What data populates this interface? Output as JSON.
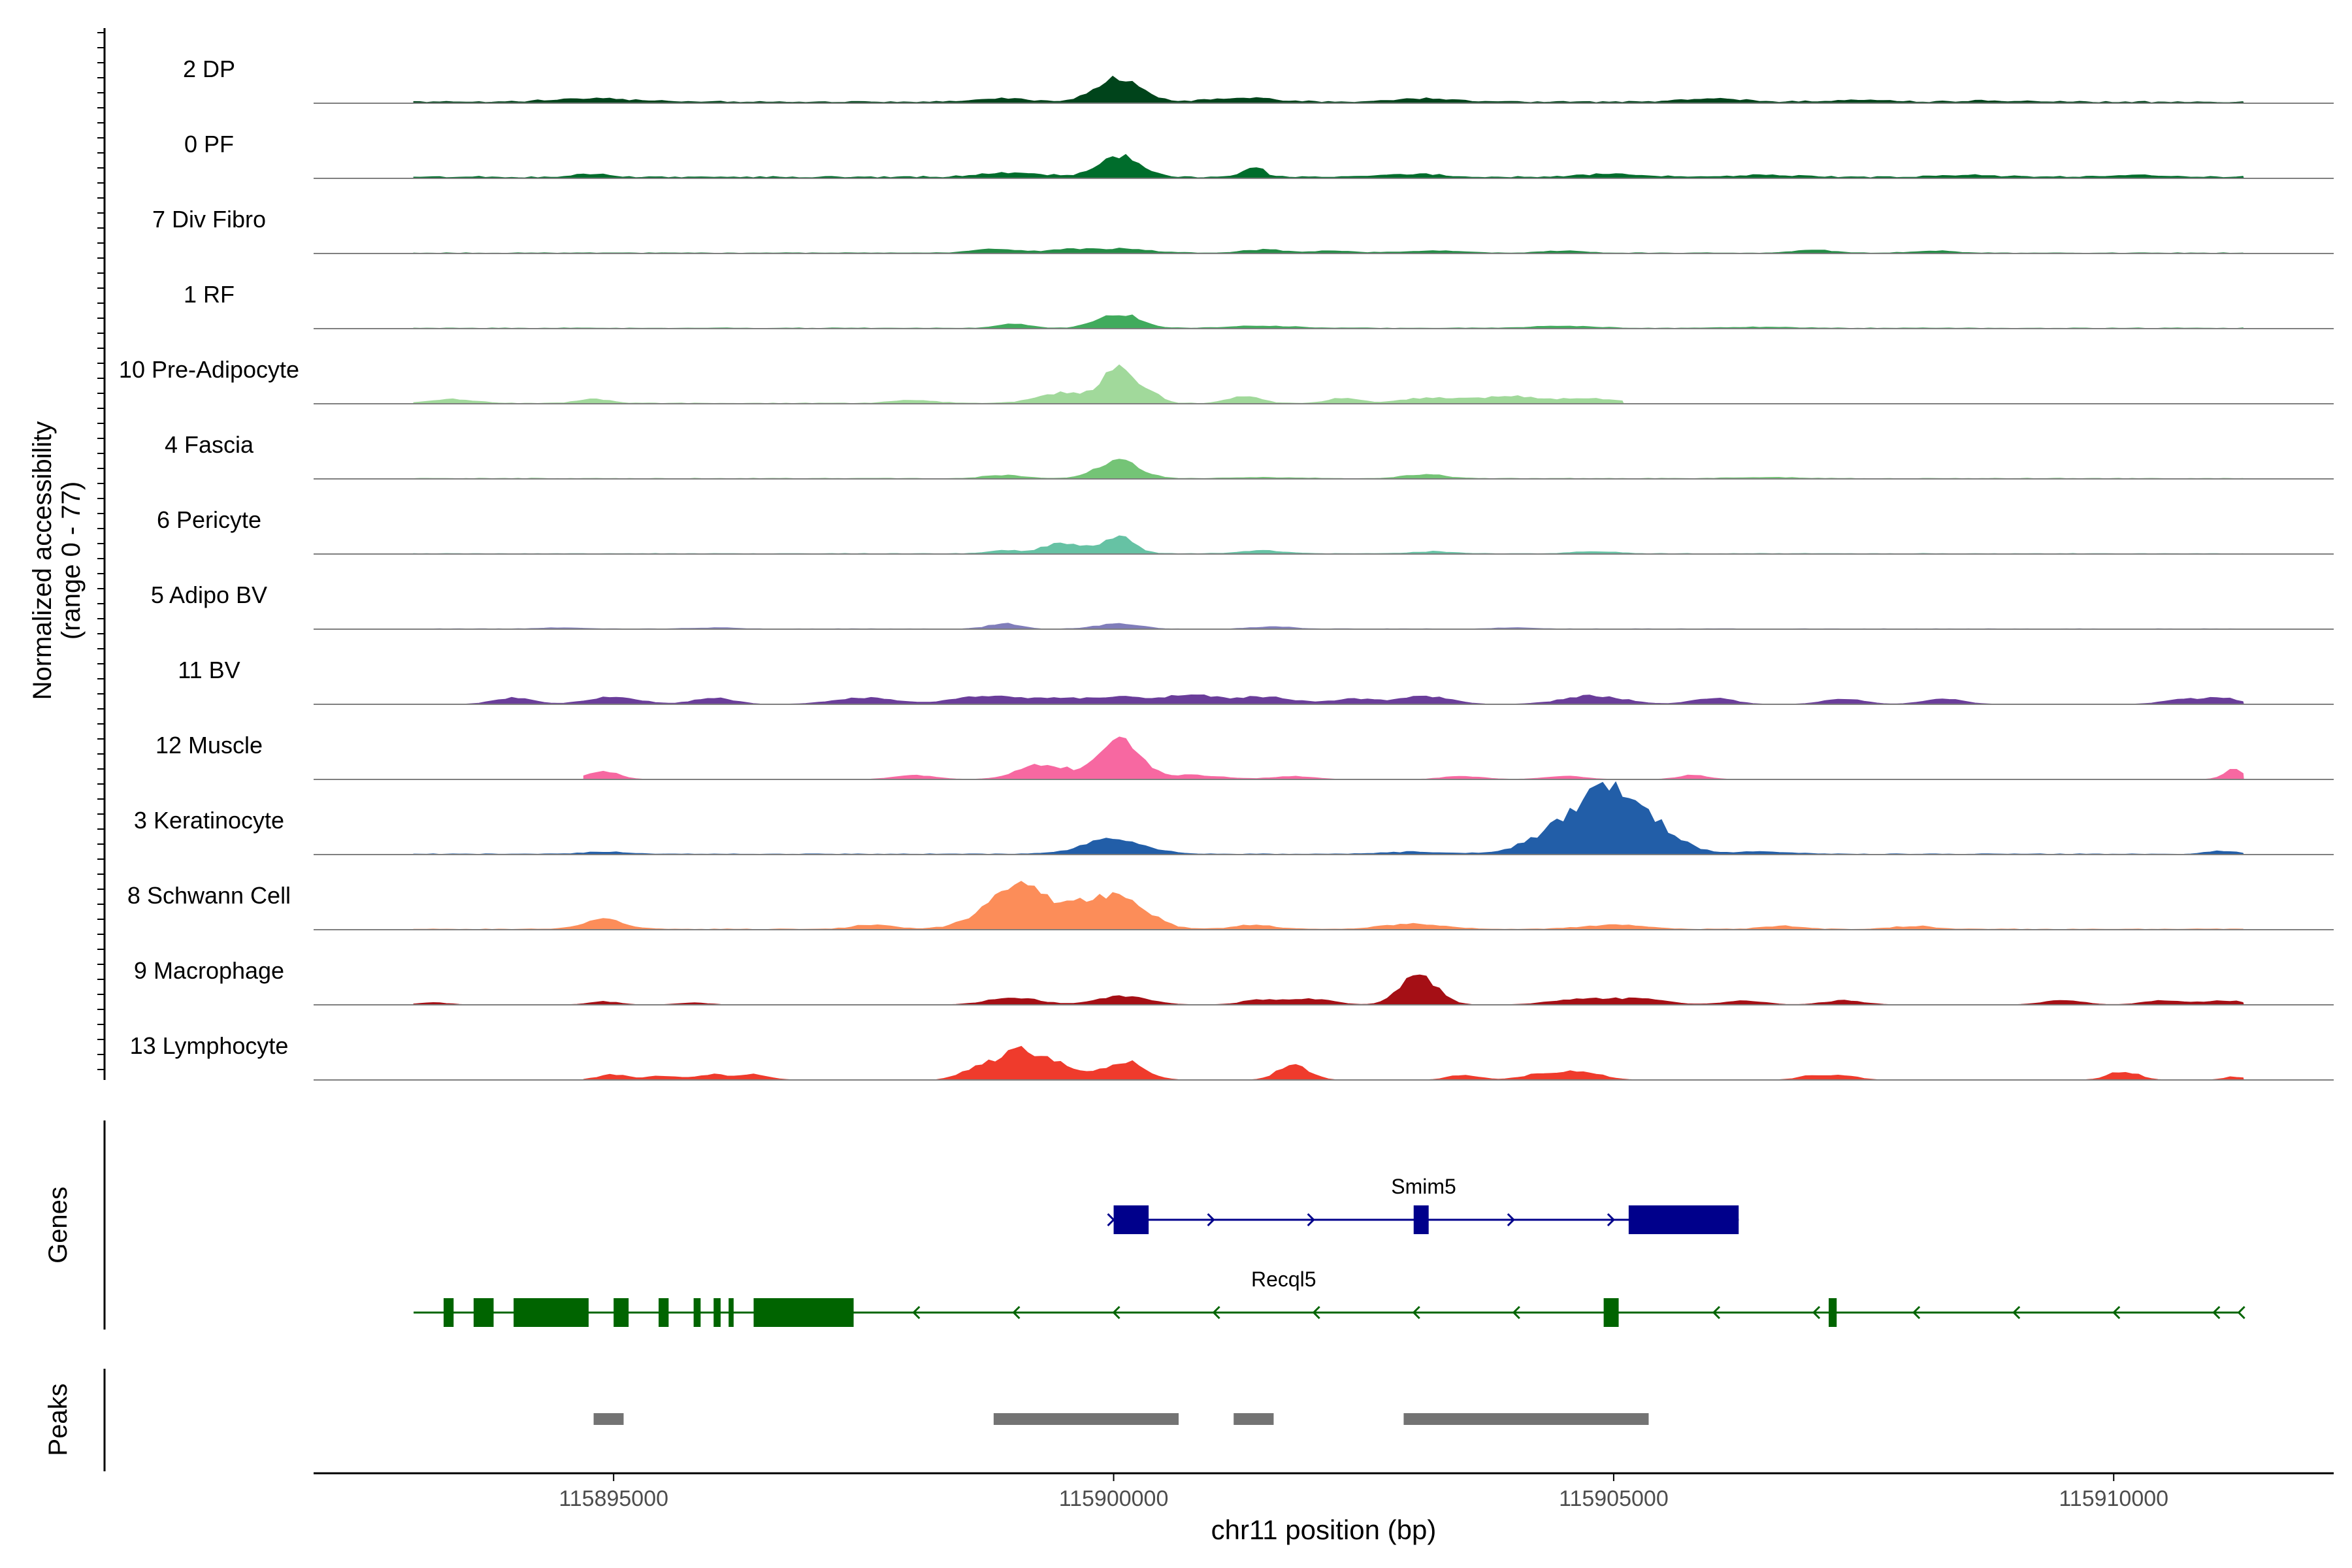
{
  "chart_data": {
    "type": "area",
    "chromosome": "chr11",
    "xlim": [
      115892000,
      115912200
    ],
    "xlabel": "chr11 position (bp)",
    "x_ticks": [
      115895000,
      115900000,
      115905000,
      115910000
    ],
    "x_tick_labels": [
      "115895000",
      "115900000",
      "115905000",
      "115910000"
    ],
    "ylabel": [
      "Normalized accessibility",
      "(range 0 - 77)"
    ],
    "ylim": [
      0,
      77
    ],
    "tracks": [
      {
        "name": "2 DP",
        "color": "#00441b",
        "peaks": [
          [
            115900050,
            24,
            220
          ],
          [
            115894800,
            3,
            400
          ],
          [
            115898900,
            3,
            300
          ],
          [
            115901300,
            4,
            300
          ],
          [
            115903100,
            3,
            300
          ],
          [
            115906000,
            3,
            300
          ],
          [
            115907500,
            2,
            300
          ],
          [
            115908800,
            1,
            300
          ]
        ],
        "baseline": 1.2,
        "extent": [
          115893000,
          115911300
        ]
      },
      {
        "name": "0 PF",
        "color": "#006d2c",
        "peaks": [
          [
            115900050,
            21,
            200
          ],
          [
            115901400,
            10,
            100
          ],
          [
            115894800,
            3,
            150
          ],
          [
            115899000,
            4,
            300
          ],
          [
            115903000,
            3,
            300
          ],
          [
            115905000,
            3,
            300
          ],
          [
            115906500,
            2,
            300
          ],
          [
            115908500,
            2,
            300
          ],
          [
            115910200,
            2,
            300
          ]
        ],
        "baseline": 1.2,
        "extent": [
          115893000,
          115911300
        ]
      },
      {
        "name": "7 Div Fibro",
        "color": "#238b45",
        "peaks": [
          [
            115900050,
            4,
            300
          ],
          [
            115898800,
            4,
            200
          ],
          [
            115899500,
            3,
            200
          ],
          [
            115901500,
            3,
            200
          ],
          [
            115902200,
            2,
            200
          ],
          [
            115903200,
            2,
            300
          ],
          [
            115904500,
            2,
            200
          ],
          [
            115907000,
            3,
            200
          ],
          [
            115908200,
            2,
            200
          ]
        ],
        "baseline": 0.5,
        "extent": [
          115893000,
          115911300
        ]
      },
      {
        "name": "1 RF",
        "color": "#41ab5d",
        "peaks": [
          [
            115900050,
            14,
            200
          ],
          [
            115899000,
            4,
            150
          ],
          [
            115901500,
            2,
            300
          ],
          [
            115904500,
            2,
            300
          ],
          [
            115906500,
            1,
            300
          ]
        ],
        "baseline": 0.5,
        "extent": [
          115893000,
          115911300
        ]
      },
      {
        "name": "10 Pre-Adipocyte",
        "color": "#a1d99b",
        "peaks": [
          [
            115900050,
            37,
            150
          ],
          [
            115899500,
            10,
            250
          ],
          [
            115900400,
            8,
            100
          ],
          [
            115901300,
            7,
            150
          ],
          [
            115902300,
            5,
            150
          ],
          [
            115903200,
            5,
            300
          ],
          [
            115904000,
            6,
            300
          ],
          [
            115893400,
            4,
            200
          ],
          [
            115894800,
            4,
            150
          ],
          [
            115898000,
            3,
            200
          ],
          [
            115904800,
            4,
            300
          ],
          [
            115907700,
            2,
            150
          ]
        ],
        "baseline": 0.5,
        "extent": [
          115893000,
          115905100
        ]
      },
      {
        "name": "4 Fascia",
        "color": "#74c476",
        "peaks": [
          [
            115900050,
            18,
            200
          ],
          [
            115898900,
            3,
            200
          ],
          [
            115903100,
            4,
            200
          ],
          [
            115901500,
            1,
            300
          ],
          [
            115906500,
            1,
            300
          ]
        ],
        "baseline": 0.4,
        "extent": [
          115893000,
          115911300
        ]
      },
      {
        "name": "6 Pericyte",
        "color": "#66c2a4",
        "peaks": [
          [
            115900050,
            17,
            150
          ],
          [
            115899500,
            10,
            200
          ],
          [
            115898900,
            3,
            150
          ],
          [
            115901500,
            3,
            200
          ],
          [
            115903200,
            2,
            200
          ],
          [
            115904800,
            2,
            200
          ]
        ],
        "baseline": 0.4,
        "extent": [
          115893000,
          115911300
        ]
      },
      {
        "name": "5 Adipo BV",
        "color": "#807dba",
        "peaks": [
          [
            115900050,
            5,
            200
          ],
          [
            115898900,
            5,
            150
          ],
          [
            115901600,
            2,
            200
          ],
          [
            115896000,
            1,
            200
          ],
          [
            115894500,
            1,
            200
          ],
          [
            115904000,
            1,
            200
          ]
        ],
        "baseline": 0.3,
        "extent": [
          115893000,
          115911300
        ]
      },
      {
        "name": "11 BV",
        "color": "#6a3d9a",
        "peaks": [
          [
            115894000,
            6,
            200
          ],
          [
            115895000,
            7,
            250
          ],
          [
            115896000,
            6,
            200
          ],
          [
            115897500,
            6,
            300
          ],
          [
            115898700,
            8,
            300
          ],
          [
            115899500,
            6,
            300
          ],
          [
            115900100,
            7,
            200
          ],
          [
            115900750,
            9,
            250
          ],
          [
            115901500,
            7,
            300
          ],
          [
            115902400,
            5,
            200
          ],
          [
            115903100,
            8,
            250
          ],
          [
            115904800,
            8,
            300
          ],
          [
            115906000,
            6,
            200
          ],
          [
            115907300,
            5,
            200
          ],
          [
            115908300,
            5,
            200
          ],
          [
            115910700,
            5,
            200
          ],
          [
            115911100,
            6,
            150
          ]
        ],
        "baseline": 0,
        "extent": [
          115893000,
          115911300
        ]
      },
      {
        "name": "12 Muscle",
        "color": "#f768a1",
        "peaks": [
          [
            115900050,
            40,
            200
          ],
          [
            115899300,
            14,
            250
          ],
          [
            115894900,
            8,
            150
          ],
          [
            115898000,
            4,
            200
          ],
          [
            115900800,
            4,
            300
          ],
          [
            115901800,
            3,
            200
          ],
          [
            115903500,
            3,
            200
          ],
          [
            115904500,
            3,
            200
          ],
          [
            115905800,
            4,
            150
          ],
          [
            115911200,
            10,
            100
          ]
        ],
        "baseline": 0,
        "extent": [
          115894700,
          115911300
        ]
      },
      {
        "name": "3 Keratinocyte",
        "color": "#225ea8",
        "peaks": [
          [
            115904950,
            62,
            380
          ],
          [
            115900000,
            14,
            300
          ],
          [
            115904300,
            7,
            300
          ],
          [
            115905500,
            5,
            250
          ],
          [
            115894900,
            2,
            200
          ],
          [
            115903000,
            2,
            300
          ],
          [
            115906500,
            2,
            300
          ],
          [
            115911100,
            3,
            150
          ]
        ],
        "baseline": 0.5,
        "extent": [
          115893000,
          115911300
        ]
      },
      {
        "name": "8 Schwann Cell",
        "color": "#fc8d59",
        "peaks": [
          [
            115899050,
            40,
            320
          ],
          [
            115900100,
            28,
            250
          ],
          [
            115899700,
            15,
            200
          ],
          [
            115894900,
            9,
            200
          ],
          [
            115903000,
            5,
            300
          ],
          [
            115905000,
            4,
            300
          ],
          [
            115897600,
            4,
            200
          ],
          [
            115908000,
            3,
            200
          ],
          [
            115906700,
            3,
            200
          ],
          [
            115901400,
            4,
            200
          ]
        ],
        "baseline": 0.5,
        "extent": [
          115893000,
          115911300
        ]
      },
      {
        "name": "9 Macrophage",
        "color": "#a50f15",
        "peaks": [
          [
            115903050,
            28,
            180
          ],
          [
            115900100,
            8,
            250
          ],
          [
            115899000,
            7,
            250
          ],
          [
            115901500,
            5,
            200
          ],
          [
            115902000,
            5,
            200
          ],
          [
            115904700,
            6,
            300
          ],
          [
            115905300,
            5,
            250
          ],
          [
            115906300,
            4,
            200
          ],
          [
            115907300,
            4,
            200
          ],
          [
            115909500,
            4,
            200
          ],
          [
            115910500,
            4,
            200
          ],
          [
            115911100,
            4,
            200
          ],
          [
            115894900,
            3,
            150
          ],
          [
            115893200,
            2,
            150
          ],
          [
            115895800,
            2,
            150
          ]
        ],
        "baseline": 0,
        "extent": [
          115893000,
          115911300
        ]
      },
      {
        "name": "13 Lymphocyte",
        "color": "#ef3b2c",
        "peaks": [
          [
            115899000,
            28,
            180
          ],
          [
            115899400,
            16,
            200
          ],
          [
            115900100,
            18,
            200
          ],
          [
            115901800,
            15,
            150
          ],
          [
            115898600,
            10,
            150
          ],
          [
            115895000,
            5,
            150
          ],
          [
            115895500,
            4,
            150
          ],
          [
            115896000,
            5,
            150
          ],
          [
            115896400,
            5,
            150
          ],
          [
            115903500,
            5,
            150
          ],
          [
            115904300,
            6,
            200
          ],
          [
            115904700,
            7,
            200
          ],
          [
            115907000,
            4,
            150
          ],
          [
            115907300,
            4,
            150
          ],
          [
            115910100,
            8,
            150
          ],
          [
            115911200,
            3,
            100
          ]
        ],
        "baseline": 0,
        "extent": [
          115894700,
          115911300
        ]
      }
    ],
    "genes": [
      {
        "name": "Smim5",
        "strand": "+",
        "color": "#00008b",
        "start": 115900000,
        "end": 115906250,
        "exons": [
          [
            115900000,
            115900350
          ],
          [
            115903000,
            115903150
          ],
          [
            115905150,
            115906250
          ]
        ],
        "arrows": [
          115901000,
          115902000,
          115904000,
          115905000
        ]
      },
      {
        "name": "Recql5",
        "strand": "-",
        "color": "#006400",
        "start": 115893000,
        "end": 115911250,
        "exons": [
          [
            115893300,
            115893400
          ],
          [
            115893600,
            115893800
          ],
          [
            115894000,
            115894750
          ],
          [
            115895000,
            115895150
          ],
          [
            115895450,
            115895550
          ],
          [
            115895800,
            115895870
          ],
          [
            115896000,
            115896070
          ],
          [
            115896150,
            115896200
          ],
          [
            115896400,
            115897400
          ],
          [
            115904900,
            115905050
          ],
          [
            115907150,
            115907230
          ]
        ],
        "arrows": [
          115898000,
          115899000,
          115900000,
          115901000,
          115902000,
          115903000,
          115904000,
          115906000,
          115907000,
          115908000,
          115909000,
          115910000,
          115911000
        ]
      }
    ],
    "peaks_track": [
      [
        115894800,
        115895100
      ],
      [
        115898800,
        115900650
      ],
      [
        115901200,
        115901600
      ],
      [
        115902900,
        115905350
      ]
    ],
    "peaks_color": "#737373",
    "panel_labels": {
      "genes": "Genes",
      "peaks": "Peaks"
    }
  }
}
